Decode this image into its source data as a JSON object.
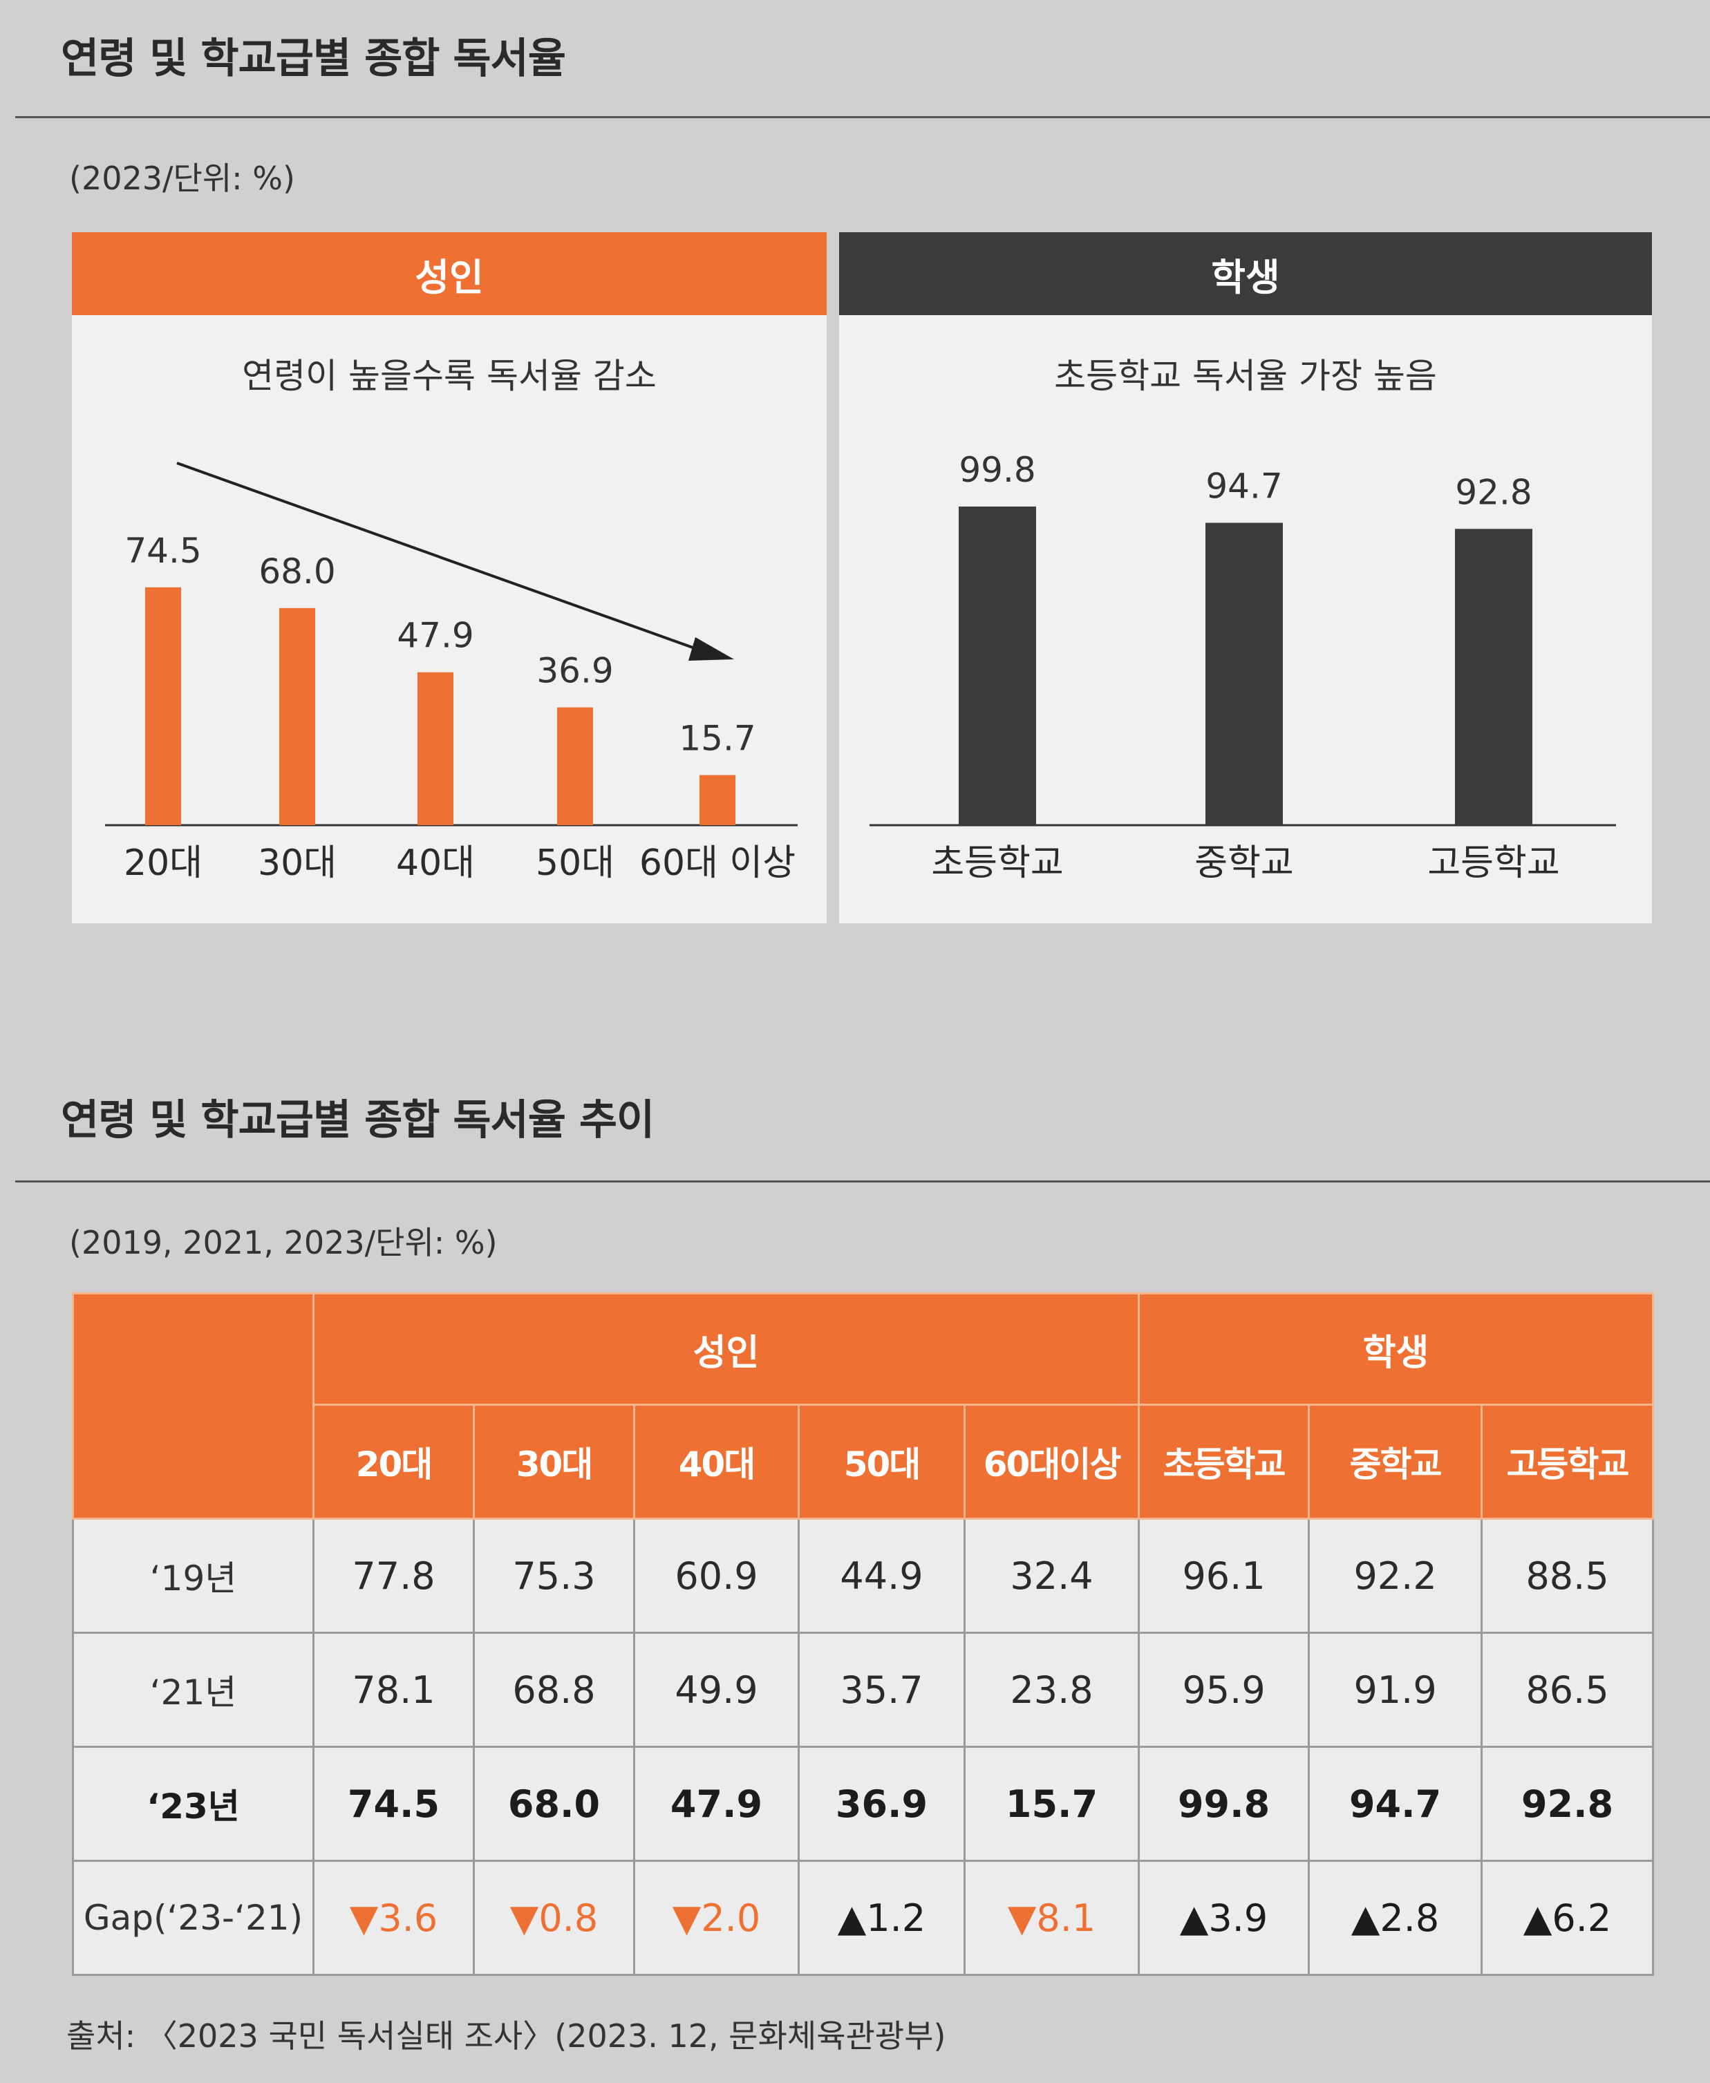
{
  "section1": {
    "title": "연령 및 학교급별 종합 독서율",
    "unit_note": "(2023/단위: %)"
  },
  "section2": {
    "title": "연령 및 학교급별 종합 독서율 추이",
    "unit_note": "(2019, 2021, 2023/단위: %)"
  },
  "colors": {
    "adult": "#ee7133",
    "student": "#3b3b3b"
  },
  "chart_data": [
    {
      "type": "bar",
      "title": "성인",
      "subtitle": "연령이 높을수록 독서율 감소",
      "categories": [
        "20대",
        "30대",
        "40대",
        "50대",
        "60대 이상"
      ],
      "values": [
        74.5,
        68.0,
        47.9,
        36.9,
        15.7
      ],
      "value_labels": [
        "74.5",
        "68.0",
        "47.9",
        "36.9",
        "15.7"
      ],
      "ylim": [
        0,
        100
      ],
      "grid": false,
      "annotation": "downward trend arrow"
    },
    {
      "type": "bar",
      "title": "학생",
      "subtitle": "초등학교 독서율 가장 높음",
      "categories": [
        "초등학교",
        "중학교",
        "고등학교"
      ],
      "values": [
        99.8,
        94.7,
        92.8
      ],
      "value_labels": [
        "99.8",
        "94.7",
        "92.8"
      ],
      "ylim": [
        0,
        100
      ],
      "grid": false
    },
    {
      "type": "table",
      "groups": [
        {
          "label": "성인",
          "columns": [
            "20대",
            "30대",
            "40대",
            "50대",
            "60대이상"
          ]
        },
        {
          "label": "학생",
          "columns": [
            "초등학교",
            "중학교",
            "고등학교"
          ]
        }
      ],
      "rows": [
        {
          "label": "‘19년",
          "values": [
            "77.8",
            "75.3",
            "60.9",
            "44.9",
            "32.4",
            "96.1",
            "92.2",
            "88.5"
          ]
        },
        {
          "label": "‘21년",
          "values": [
            "78.1",
            "68.8",
            "49.9",
            "35.7",
            "23.8",
            "95.9",
            "91.9",
            "86.5"
          ]
        },
        {
          "label": "‘23년",
          "values": [
            "74.5",
            "68.0",
            "47.9",
            "36.9",
            "15.7",
            "99.8",
            "94.7",
            "92.8"
          ]
        }
      ],
      "gap": {
        "label": "Gap(‘23-‘21)",
        "values": [
          {
            "dir": "down",
            "symbol": "▼",
            "value": "3.6"
          },
          {
            "dir": "down",
            "symbol": "▼",
            "value": "0.8"
          },
          {
            "dir": "down",
            "symbol": "▼",
            "value": "2.0"
          },
          {
            "dir": "up",
            "symbol": "▲",
            "value": "1.2"
          },
          {
            "dir": "down",
            "symbol": "▼",
            "value": "8.1"
          },
          {
            "dir": "up",
            "symbol": "▲",
            "value": "3.9"
          },
          {
            "dir": "up",
            "symbol": "▲",
            "value": "2.8"
          },
          {
            "dir": "up",
            "symbol": "▲",
            "value": "6.2"
          }
        ]
      }
    }
  ],
  "source": "출처: 〈2023 국민 독서실태 조사〉(2023. 12, 문화체육관광부)"
}
